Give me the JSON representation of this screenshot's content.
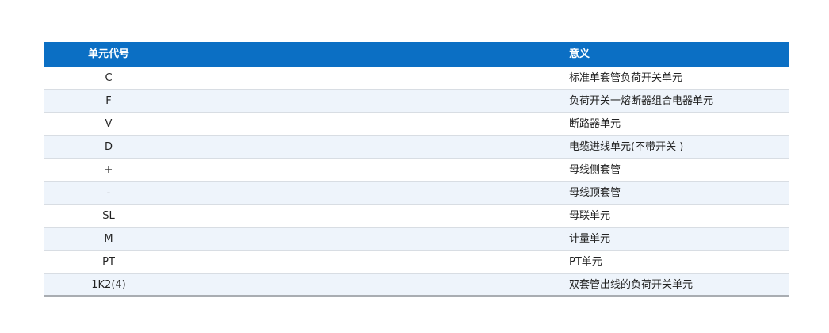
{
  "table": {
    "header": [
      "单元代号",
      "意义"
    ],
    "rows": [
      [
        "C",
        "标准单套管负荷开关单元"
      ],
      [
        "F",
        "负荷开关一熔断器组合电器单元"
      ],
      [
        "V",
        "断路器单元"
      ],
      [
        "D",
        "电缆进线单元(不带开关 )"
      ],
      [
        "+",
        "母线侧套管"
      ],
      [
        "-",
        "母线顶套管"
      ],
      [
        "SL",
        "母联单元"
      ],
      [
        "M",
        "计量单元"
      ],
      [
        "PT",
        "PT单元"
      ],
      [
        "1K2(4)",
        "双套管出线的负荷开关单元"
      ]
    ]
  }
}
